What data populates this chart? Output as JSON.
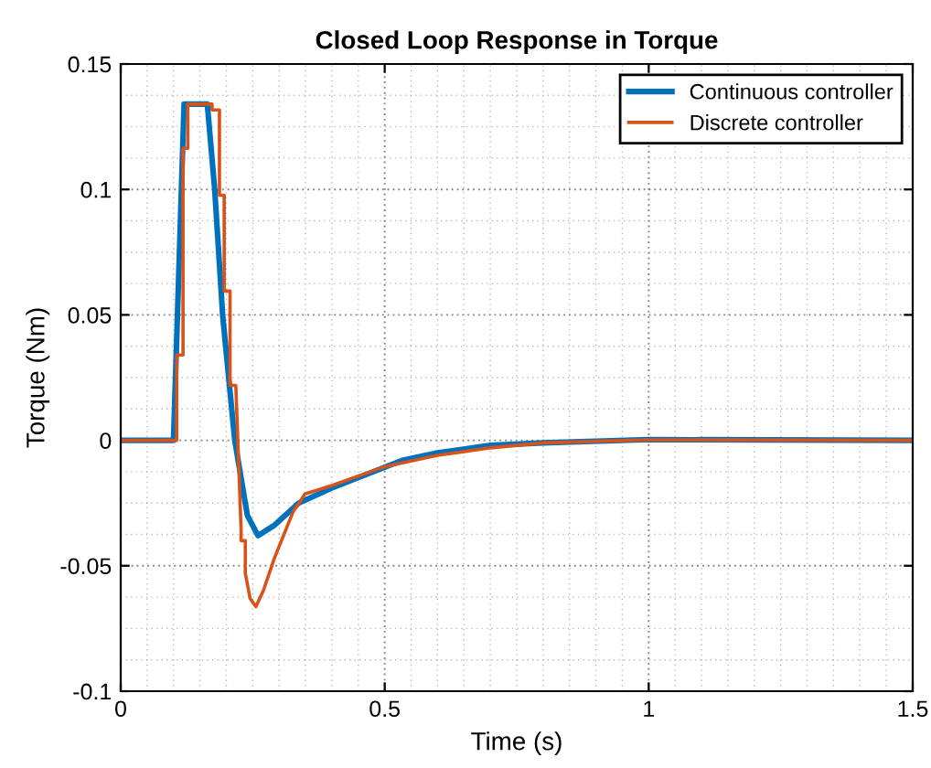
{
  "chart_data": {
    "type": "line",
    "title": "Closed Loop Response in Torque",
    "xlabel": "Time (s)",
    "ylabel": "Torque (Nm)",
    "xlim": [
      0,
      1.5
    ],
    "xticks": [
      0,
      0.5,
      1,
      1.5
    ],
    "ylim": [
      -0.1,
      0.15
    ],
    "yticks": [
      -0.1,
      -0.05,
      0,
      0.05,
      0.1,
      0.15
    ],
    "grid": true,
    "legend": "top right",
    "series": [
      {
        "name": "Continuous controller",
        "color": "#0072bd",
        "x": [
          0,
          0.1,
          0.12,
          0.164,
          0.178,
          0.193,
          0.216,
          0.24,
          0.26,
          0.29,
          0.337,
          0.4,
          0.533,
          0.6,
          0.7,
          0.8,
          1.0,
          1.5
        ],
        "values": [
          0,
          0,
          0.134,
          0.134,
          0.1,
          0.05,
          0,
          -0.03,
          -0.038,
          -0.034,
          -0.025,
          -0.019,
          -0.008,
          -0.005,
          -0.002,
          -0.001,
          0.0003,
          0
        ]
      },
      {
        "name": "Discrete controller",
        "color": "#d95319",
        "x": [
          0,
          0.106,
          0.106,
          0.118,
          0.118,
          0.127,
          0.127,
          0.173,
          0.173,
          0.187,
          0.187,
          0.196,
          0.196,
          0.207,
          0.207,
          0.218,
          0.228,
          0.228,
          0.236,
          0.236,
          0.245,
          0.256,
          0.27,
          0.291,
          0.326,
          0.349,
          0.4,
          0.5,
          0.6,
          0.7,
          0.8,
          1.0,
          1.5
        ],
        "values": [
          0,
          0,
          0.034,
          0.034,
          0.1164,
          0.1164,
          0.134,
          0.134,
          0.1317,
          0.1317,
          0.0977,
          0.0977,
          0.0595,
          0.0595,
          0.0219,
          0.0219,
          -0.0359,
          -0.04,
          -0.04,
          -0.053,
          -0.063,
          -0.0663,
          -0.06,
          -0.047,
          -0.0287,
          -0.0214,
          -0.018,
          -0.0105,
          -0.006,
          -0.003,
          -0.001,
          0.0002,
          0
        ]
      }
    ]
  }
}
